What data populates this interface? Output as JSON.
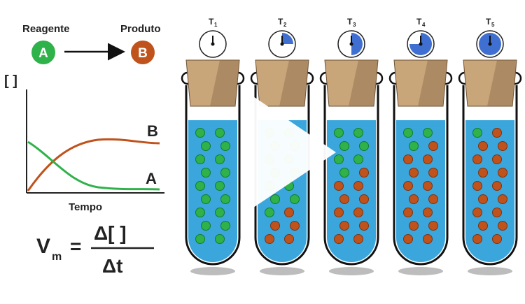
{
  "reaction": {
    "reagent_label": "Reagente",
    "reagent_symbol": "A",
    "product_label": "Produto",
    "product_symbol": "B"
  },
  "graph": {
    "y_label": "[ ]",
    "x_label": "Tempo",
    "curve_b_label": "B",
    "curve_a_label": "A"
  },
  "formula": {
    "lhs": "V",
    "lhs_subscript": "m",
    "equals": "=",
    "numerator": "Δ[  ]",
    "denominator": "Δt"
  },
  "tubes": [
    {
      "time_label": "T",
      "time_sub": "1",
      "clock_fraction": 0.0,
      "green": 18,
      "orange": 0
    },
    {
      "time_label": "T",
      "time_sub": "2",
      "clock_fraction": 0.25,
      "green": 13,
      "orange": 5
    },
    {
      "time_label": "T",
      "time_sub": "3",
      "clock_fraction": 0.5,
      "green": 7,
      "orange": 11
    },
    {
      "time_label": "T",
      "time_sub": "4",
      "clock_fraction": 0.75,
      "green": 3,
      "orange": 15
    },
    {
      "time_label": "T",
      "time_sub": "5",
      "clock_fraction": 1.0,
      "green": 1,
      "orange": 17
    }
  ],
  "colors": {
    "green": "#2fb24a",
    "orange": "#c0521c",
    "liquid": "#3aa6dc",
    "cork": "#c9a57a",
    "clock_fill": "#3f6fd1",
    "curve_a": "#2fb24a",
    "curve_b": "#c0521c"
  },
  "play_icon": "play-icon"
}
